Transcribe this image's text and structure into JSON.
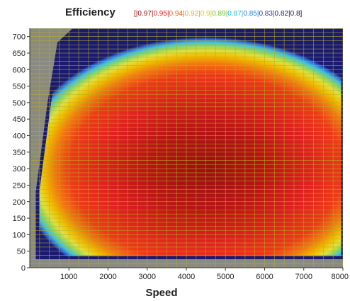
{
  "chart_data": {
    "type": "heatmap",
    "title": "Efficiency",
    "xlabel": "Speed",
    "ylabel": "",
    "xlim": [
      0,
      8000
    ],
    "ylim": [
      0,
      725
    ],
    "x_ticks": [
      1000,
      2000,
      3000,
      4000,
      5000,
      6000,
      7000,
      8000
    ],
    "y_ticks": [
      0,
      50,
      100,
      150,
      200,
      250,
      300,
      350,
      400,
      450,
      500,
      550,
      600,
      650,
      700
    ],
    "x_tick_labels": [
      "1000",
      "2000",
      "3000",
      "4000",
      "5000",
      "6000",
      "7000",
      "8000"
    ],
    "y_tick_labels": [
      "0",
      "50",
      "100",
      "150",
      "200",
      "250",
      "300",
      "350",
      "400",
      "450",
      "500",
      "550",
      "600",
      "650",
      "700"
    ],
    "grid": true,
    "background_color": "#8a8a80",
    "grid_color": "#b8b020",
    "legend_prefix": "[|",
    "legend_suffix": "]",
    "legend": [
      {
        "label": "0.97",
        "color": "#9a1010"
      },
      {
        "label": "0.95",
        "color": "#e02020"
      },
      {
        "label": "0.94",
        "color": "#ee5a14"
      },
      {
        "label": "0.92",
        "color": "#f0a800"
      },
      {
        "label": "0.9",
        "color": "#d8d000"
      },
      {
        "label": "0.89",
        "color": "#70c020"
      },
      {
        "label": "0.87",
        "color": "#30b8d8"
      },
      {
        "label": "0.85",
        "color": "#2a80e0"
      },
      {
        "label": "0.83",
        "color": "#2a3aa0"
      },
      {
        "label": "0.82",
        "color": "#1a1a70"
      },
      {
        "label": "0.8",
        "color": "#101040"
      }
    ],
    "efficiency_region": {
      "boundary": [
        [
          200,
          30
        ],
        [
          200,
          230
        ],
        [
          500,
          500
        ],
        [
          750,
          680
        ],
        [
          1100,
          718
        ],
        [
          8000,
          718
        ],
        [
          8000,
          30
        ]
      ],
      "bottom_edge": [
        [
          200,
          30
        ],
        [
          4500,
          33
        ],
        [
          8000,
          50
        ]
      ],
      "peak_center": [
        4500,
        300
      ],
      "peak_efficiency": 0.97,
      "edge_efficiency": 0.8
    }
  }
}
